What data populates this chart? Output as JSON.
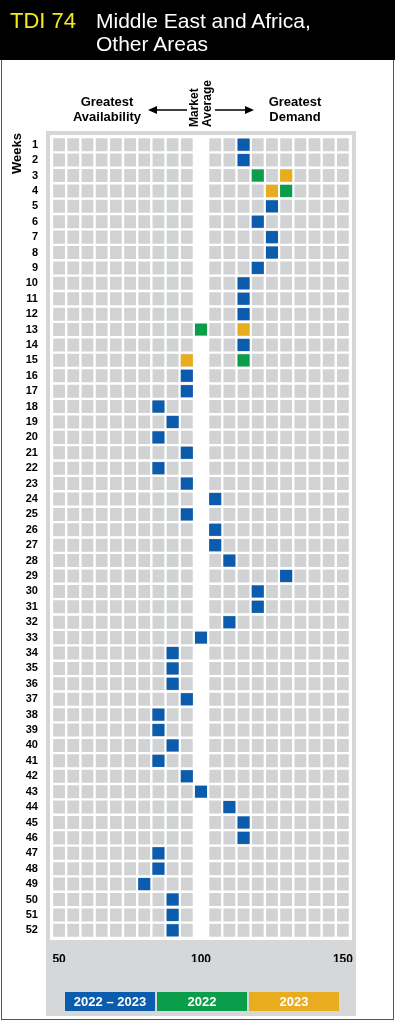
{
  "chart_data": {
    "type": "scatter",
    "orientation": "horizontal",
    "title": "TDI 74",
    "subtitle": "Middle East and Africa, Other Areas",
    "ylabel": "Weeks",
    "categories": [
      "1",
      "2",
      "3",
      "4",
      "5",
      "6",
      "7",
      "8",
      "9",
      "10",
      "11",
      "12",
      "13",
      "14",
      "15",
      "16",
      "17",
      "18",
      "19",
      "20",
      "21",
      "22",
      "23",
      "24",
      "25",
      "26",
      "27",
      "28",
      "29",
      "30",
      "31",
      "32",
      "33",
      "34",
      "35",
      "36",
      "37",
      "38",
      "39",
      "40",
      "41",
      "42",
      "43",
      "44",
      "45",
      "46",
      "47",
      "48",
      "49",
      "50",
      "51",
      "52"
    ],
    "xlim": [
      47.5,
      152.5
    ],
    "xticks": [
      50,
      100,
      150
    ],
    "grid": true,
    "marker": "square",
    "legend": "bottom",
    "ref_lines": [
      {
        "axis": "x",
        "value": 100,
        "label": "Market Average",
        "color": "#ffffff"
      }
    ],
    "annotations": [
      "Greatest Availability",
      "Greatest Demand"
    ],
    "series": [
      {
        "name": "2022 – 2023",
        "color": "#0b5cad",
        "values": [
          115,
          115,
          null,
          null,
          125,
          120,
          125,
          125,
          120,
          115,
          115,
          115,
          null,
          115,
          null,
          95,
          95,
          85,
          90,
          85,
          95,
          85,
          95,
          105,
          95,
          105,
          105,
          110,
          130,
          120,
          120,
          110,
          100,
          90,
          90,
          90,
          95,
          85,
          85,
          90,
          85,
          95,
          100,
          110,
          115,
          115,
          85,
          85,
          80,
          90,
          90,
          90
        ]
      },
      {
        "name": "2022",
        "color": "#0a9e4a",
        "values": [
          null,
          null,
          120,
          130,
          null,
          null,
          null,
          null,
          null,
          null,
          null,
          null,
          100,
          null,
          115,
          null,
          null,
          null,
          null,
          null,
          null,
          null,
          null,
          null,
          null,
          null,
          null,
          null,
          null,
          null,
          null,
          null,
          null,
          null,
          null,
          null,
          null,
          null,
          null,
          null,
          null,
          null,
          null,
          null,
          null,
          null,
          null,
          null,
          null,
          null,
          null,
          null
        ]
      },
      {
        "name": "2023",
        "color": "#e9ac1f",
        "values": [
          null,
          null,
          130,
          125,
          null,
          null,
          null,
          null,
          null,
          null,
          null,
          null,
          115,
          null,
          95,
          null,
          null,
          null,
          null,
          null,
          null,
          null,
          null,
          null,
          null,
          null,
          null,
          null,
          null,
          null,
          null,
          null,
          null,
          null,
          null,
          null,
          null,
          null,
          null,
          null,
          null,
          null,
          null,
          null,
          null,
          null,
          null,
          null,
          null,
          null,
          null,
          null
        ]
      }
    ]
  }
}
